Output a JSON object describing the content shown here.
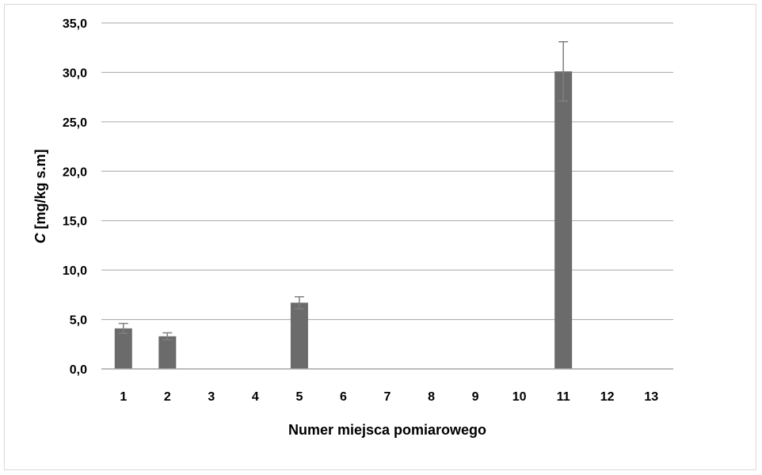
{
  "chart_data": {
    "type": "bar",
    "title": "",
    "xlabel": "Numer miejsca pomiarowego",
    "ylabel_symbol": "C",
    "ylabel_unit": " [mg/kg s.m]",
    "categories": [
      "1",
      "2",
      "3",
      "4",
      "5",
      "6",
      "7",
      "8",
      "9",
      "10",
      "11",
      "12",
      "13"
    ],
    "values": [
      4.1,
      3.3,
      0,
      0,
      6.7,
      0,
      0,
      0,
      0,
      0,
      30.1,
      0,
      0
    ],
    "errors": [
      0.5,
      0.35,
      null,
      null,
      0.6,
      null,
      null,
      null,
      null,
      null,
      3.0,
      null,
      null
    ],
    "ylim": [
      0,
      35
    ],
    "yticks": [
      "0,0",
      "5,0",
      "10,0",
      "15,0",
      "20,0",
      "25,0",
      "30,0",
      "35,0"
    ],
    "grid": true,
    "legend": "none",
    "bar_color": "#6b6b6b",
    "error_color": "#7f7f7f",
    "grid_color": "#a6a6a6"
  }
}
